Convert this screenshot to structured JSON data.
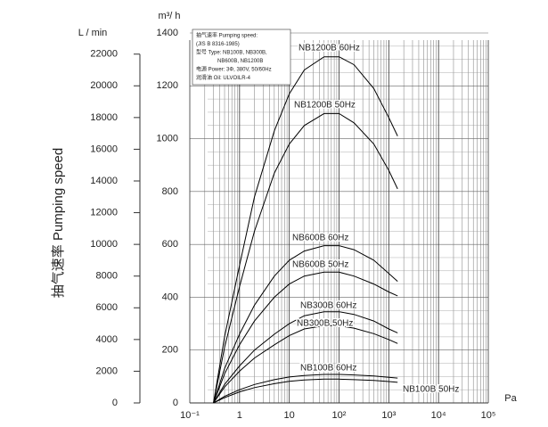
{
  "chart_data": {
    "type": "line",
    "y_axis_label": "抽气速率 Pumping speed",
    "y_unit": "m³/ h",
    "y2_unit": "L / min",
    "x_unit": "Pa",
    "annotation": [
      "抽气速率 Pumping speed:",
      "(JIS B 8316-1985)",
      "型号 Type: NB100B, NB300B,",
      "NB600B, NB1200B",
      "电源 Power: 3Φ, 380V, 50/60Hz",
      "润滑油 Oil: ULVOILR-4"
    ],
    "x_scale": "log",
    "x": [
      0.3,
      0.5,
      1,
      2,
      5,
      10,
      20,
      50,
      100,
      200,
      500,
      1000,
      1500
    ],
    "xlim": [
      0.1,
      100000
    ],
    "xticks": [
      {
        "value": 0.1,
        "label": "10⁻¹"
      },
      1,
      10,
      {
        "value": 100,
        "label": "10²"
      },
      {
        "value": 1000,
        "label": "10³"
      },
      {
        "value": 10000,
        "label": "10⁴"
      },
      {
        "value": 100000,
        "label": "10⁵"
      }
    ],
    "ylim": [
      0,
      1400
    ],
    "yticks": [
      0,
      200,
      400,
      600,
      800,
      1000,
      1200,
      1400
    ],
    "y2lim": [
      0,
      23333
    ],
    "y2ticks": [
      0,
      2000,
      4000,
      6000,
      8000,
      10000,
      12000,
      14000,
      16000,
      18000,
      20000,
      22000
    ],
    "grid": true,
    "series": [
      {
        "name": "NB1200B 60Hz",
        "color": "#000000",
        "values": [
          0,
          250,
          520,
          780,
          1030,
          1170,
          1260,
          1310,
          1310,
          1280,
          1190,
          1080,
          1010
        ]
      },
      {
        "name": "NB1200B 50Hz",
        "color": "#000000",
        "values": [
          0,
          210,
          440,
          650,
          870,
          980,
          1050,
          1095,
          1095,
          1060,
          980,
          880,
          810
        ]
      },
      {
        "name": "NB600B 60Hz",
        "color": "#000000",
        "values": [
          0,
          130,
          260,
          370,
          480,
          540,
          575,
          595,
          595,
          580,
          540,
          490,
          460
        ]
      },
      {
        "name": "NB600B 50Hz",
        "color": "#000000",
        "values": [
          0,
          110,
          220,
          310,
          400,
          450,
          480,
          495,
          495,
          480,
          450,
          420,
          405
        ]
      },
      {
        "name": "NB300B 60Hz",
        "color": "#000000",
        "values": [
          0,
          70,
          140,
          200,
          260,
          300,
          330,
          345,
          345,
          335,
          310,
          280,
          265
        ]
      },
      {
        "name": "NB300B 50Hz",
        "color": "#000000",
        "values": [
          0,
          60,
          120,
          170,
          220,
          255,
          280,
          292,
          292,
          283,
          262,
          240,
          225
        ]
      },
      {
        "name": "NB100B 60Hz",
        "color": "#000000",
        "values": [
          0,
          25,
          50,
          70,
          88,
          98,
          104,
          108,
          108,
          106,
          102,
          97,
          94
        ]
      },
      {
        "name": "NB100B 50Hz",
        "color": "#000000",
        "values": [
          0,
          20,
          42,
          58,
          73,
          82,
          87,
          90,
          90,
          88,
          85,
          81,
          78
        ]
      }
    ]
  }
}
